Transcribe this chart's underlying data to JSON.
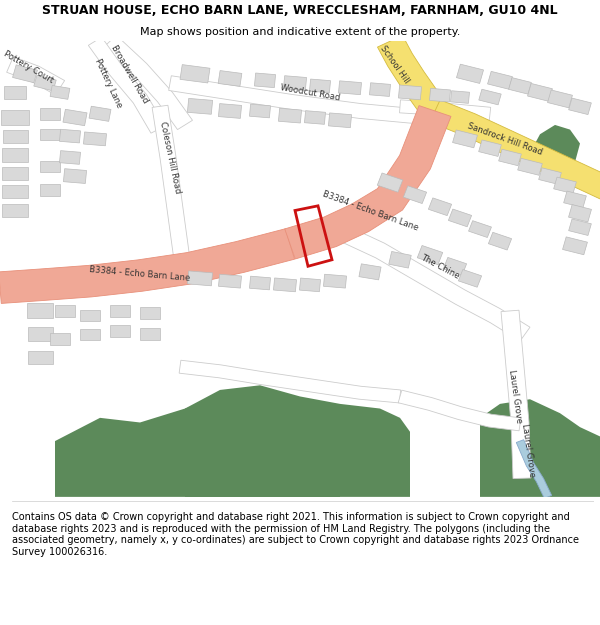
{
  "title_line1": "STRUAN HOUSE, ECHO BARN LANE, WRECCLESHAM, FARNHAM, GU10 4NL",
  "title_line2": "Map shows position and indicative extent of the property.",
  "footer": "Contains OS data © Crown copyright and database right 2021. This information is subject to Crown copyright and database rights 2023 and is reproduced with the permission of HM Land Registry. The polygons (including the associated geometry, namely x, y co-ordinates) are subject to Crown copyright and database rights 2023 Ordnance Survey 100026316.",
  "bg_color": "#ffffff",
  "map_bg": "#f5f5f2",
  "road_pink": "#f0a896",
  "road_pink_edge": "#e8907a",
  "road_white": "#ffffff",
  "road_white_edge": "#cccccc",
  "yellow_road": "#f5e070",
  "yellow_road_edge": "#d4bb40",
  "green_area": "#5c8a5a",
  "building_color": "#d9d9d9",
  "building_outline": "#bbbbbb",
  "plot_color": "#cc1111",
  "water_color": "#aaccdd",
  "title_fontsize": 9.0,
  "subtitle_fontsize": 8.0,
  "footer_fontsize": 7.0,
  "label_fontsize": 6.5
}
